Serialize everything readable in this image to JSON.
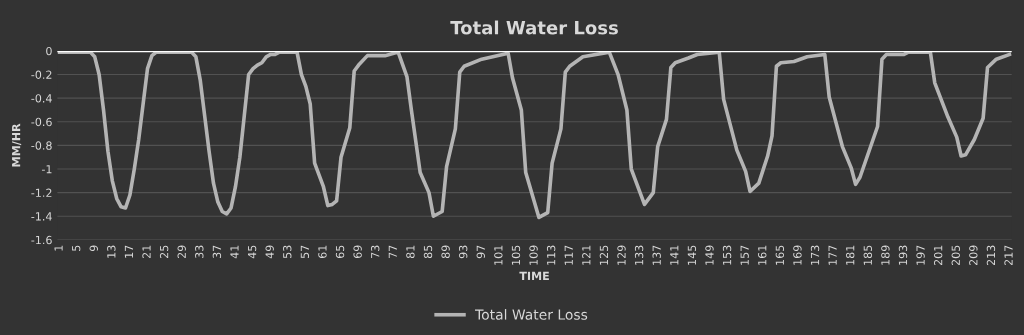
{
  "chart_data": {
    "type": "line",
    "title": "Total Water Loss",
    "xlabel": "TIME",
    "ylabel": "MM/HR",
    "xlim": [
      0.5,
      217.5
    ],
    "xticks": [
      1,
      5,
      9,
      13,
      17,
      21,
      25,
      29,
      33,
      37,
      41,
      45,
      49,
      53,
      57,
      61,
      65,
      69,
      73,
      77,
      81,
      85,
      89,
      93,
      97,
      101,
      105,
      109,
      113,
      117,
      121,
      125,
      129,
      133,
      137,
      141,
      145,
      149,
      153,
      157,
      161,
      165,
      169,
      173,
      177,
      181,
      185,
      189,
      193,
      197,
      201,
      205,
      209,
      213,
      217
    ],
    "ylim": [
      -1.6,
      0
    ],
    "yticks": [
      -1.6,
      -1.4,
      -1.2,
      -1,
      -0.8,
      -0.6,
      -0.4,
      -0.2,
      0
    ],
    "grid": "y",
    "legend": "bottom",
    "marker": "none",
    "line_style": "solid",
    "ref_lines": [
      {
        "axis": "y",
        "value": 0,
        "color": "#ffffff"
      }
    ],
    "series": [
      {
        "name": "Total Water Loss",
        "color": "#b4b4b4",
        "x": [
          1,
          5,
          8,
          9,
          10,
          11,
          12,
          13,
          14,
          15,
          16,
          17,
          18,
          19,
          20,
          21,
          22,
          23,
          30,
          31,
          32,
          33,
          34,
          35,
          36,
          37,
          38,
          39,
          40,
          41,
          42,
          43,
          44,
          45,
          46,
          47,
          48,
          49,
          50,
          51,
          55,
          56,
          57,
          58,
          59,
          60,
          61,
          62,
          63,
          64,
          65,
          67,
          68,
          69,
          71,
          75,
          78,
          80,
          81,
          83,
          85,
          86,
          88,
          89,
          91,
          92,
          93,
          97,
          103,
          104,
          106,
          107,
          110,
          112,
          113,
          115,
          116,
          117,
          120,
          126,
          128,
          130,
          131,
          134,
          136,
          137,
          139,
          140,
          141,
          144,
          146,
          151,
          152,
          155,
          157,
          158,
          160,
          162,
          163,
          164,
          165,
          168,
          171,
          175,
          176,
          179,
          181,
          182,
          183,
          187,
          188,
          189,
          193,
          194,
          199,
          200,
          203,
          205,
          206,
          207,
          209,
          211,
          212,
          214,
          217
        ],
        "values": [
          -0.01,
          -0.01,
          -0.01,
          -0.05,
          -0.2,
          -0.5,
          -0.85,
          -1.1,
          -1.25,
          -1.32,
          -1.33,
          -1.22,
          -1.0,
          -0.75,
          -0.45,
          -0.15,
          -0.04,
          -0.01,
          -0.01,
          -0.01,
          -0.05,
          -0.25,
          -0.55,
          -0.85,
          -1.12,
          -1.28,
          -1.36,
          -1.38,
          -1.33,
          -1.15,
          -0.9,
          -0.55,
          -0.2,
          -0.15,
          -0.12,
          -0.1,
          -0.05,
          -0.03,
          -0.03,
          -0.01,
          -0.01,
          -0.2,
          -0.3,
          -0.45,
          -0.95,
          -1.05,
          -1.15,
          -1.31,
          -1.3,
          -1.27,
          -0.9,
          -0.65,
          -0.17,
          -0.12,
          -0.04,
          -0.04,
          -0.01,
          -0.22,
          -0.5,
          -1.03,
          -1.2,
          -1.4,
          -1.36,
          -0.98,
          -0.66,
          -0.18,
          -0.13,
          -0.07,
          -0.02,
          -0.23,
          -0.5,
          -1.03,
          -1.41,
          -1.37,
          -0.95,
          -0.66,
          -0.18,
          -0.13,
          -0.05,
          -0.01,
          -0.2,
          -0.5,
          -1.0,
          -1.3,
          -1.2,
          -0.81,
          -0.58,
          -0.14,
          -0.1,
          -0.06,
          -0.03,
          -0.01,
          -0.41,
          -0.84,
          -1.02,
          -1.19,
          -1.12,
          -0.89,
          -0.72,
          -0.13,
          -0.1,
          -0.09,
          -0.05,
          -0.03,
          -0.39,
          -0.81,
          -0.99,
          -1.13,
          -1.07,
          -0.64,
          -0.07,
          -0.03,
          -0.03,
          -0.01,
          -0.01,
          -0.27,
          -0.56,
          -0.73,
          -0.89,
          -0.88,
          -0.75,
          -0.57,
          -0.14,
          -0.07,
          -0.03
        ]
      }
    ]
  }
}
